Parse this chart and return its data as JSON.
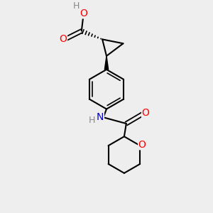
{
  "background_color": "#eeeeee",
  "atom_colors": {
    "C": "#000000",
    "O": "#ff0000",
    "N": "#0000cc",
    "H": "#888888"
  },
  "bond_color": "#000000",
  "bond_width": 1.5,
  "font_size_atom": 10,
  "fig_size": [
    3.0,
    3.0
  ],
  "dpi": 100
}
